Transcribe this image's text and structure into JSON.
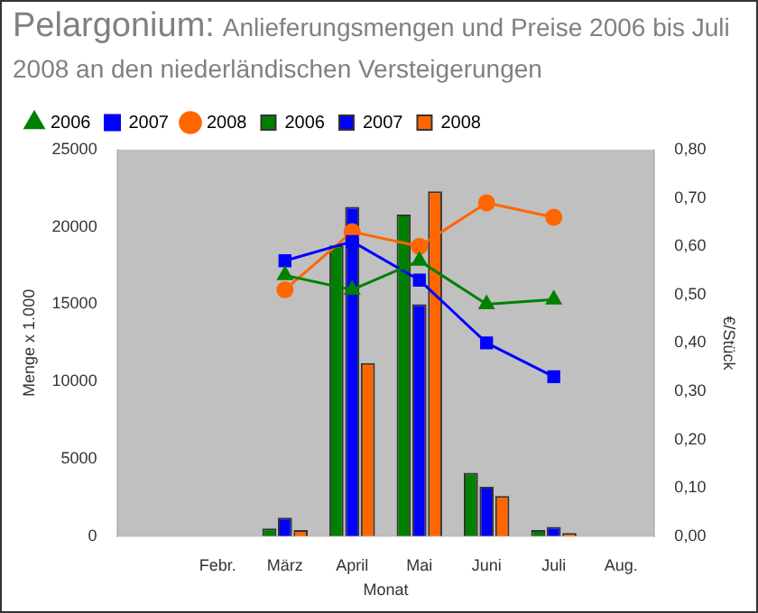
{
  "chart_data": {
    "type": "bar",
    "title": "Pelargonium:",
    "subtitle": "Anlieferungsmengen und Preise 2006 bis Juli 2008 an den niederländischen Versteigerungen",
    "xlabel": "Monat",
    "ylabel": "Menge x 1.000",
    "y2label": "€/Stück",
    "categories": [
      null,
      "Febr.",
      "März",
      "April",
      "Mai",
      "Juni",
      "Juli",
      "Aug."
    ],
    "series": [
      {
        "name": "2006",
        "color": "#008000",
        "values": [
          null,
          null,
          500,
          18800,
          20800,
          4100,
          400,
          null
        ]
      },
      {
        "name": "2007",
        "color": "#0000ff",
        "values": [
          null,
          null,
          1200,
          21300,
          15000,
          3200,
          600,
          null
        ]
      },
      {
        "name": "2008",
        "color": "#ff6600",
        "values": [
          null,
          null,
          400,
          11200,
          22300,
          2600,
          200,
          null
        ]
      },
      {
        "name": "2006",
        "type": "line",
        "axis": "y2",
        "marker": "triangle",
        "color": "#008000",
        "values": [
          null,
          null,
          0.54,
          0.51,
          0.57,
          0.48,
          0.49,
          null
        ]
      },
      {
        "name": "2007",
        "type": "line",
        "axis": "y2",
        "marker": "square",
        "color": "#0000ff",
        "values": [
          null,
          null,
          0.57,
          0.61,
          0.53,
          0.4,
          0.33,
          null
        ]
      },
      {
        "name": "2008",
        "type": "line",
        "axis": "y2",
        "marker": "circle",
        "color": "#ff6600",
        "values": [
          null,
          null,
          0.51,
          0.63,
          0.6,
          0.69,
          0.66,
          null
        ]
      }
    ],
    "ylim": [
      0,
      25000
    ],
    "yticks": [
      0,
      5000,
      10000,
      15000,
      20000,
      25000
    ],
    "y2lim": [
      0,
      0.8
    ],
    "y2ticks": [
      {
        "value": 0,
        "label": "0,00"
      },
      {
        "value": 0.1,
        "label": "0,10"
      },
      {
        "value": 0.2,
        "label": "0,20"
      },
      {
        "value": 0.3,
        "label": "0,30"
      },
      {
        "value": 0.4,
        "label": "0,40"
      },
      {
        "value": 0.5,
        "label": "0,50"
      },
      {
        "value": 0.6,
        "label": "0,60"
      },
      {
        "value": 0.7,
        "label": "0,70"
      },
      {
        "value": 0.8,
        "label": "0,80"
      }
    ],
    "grid": false,
    "legend": "top left"
  }
}
